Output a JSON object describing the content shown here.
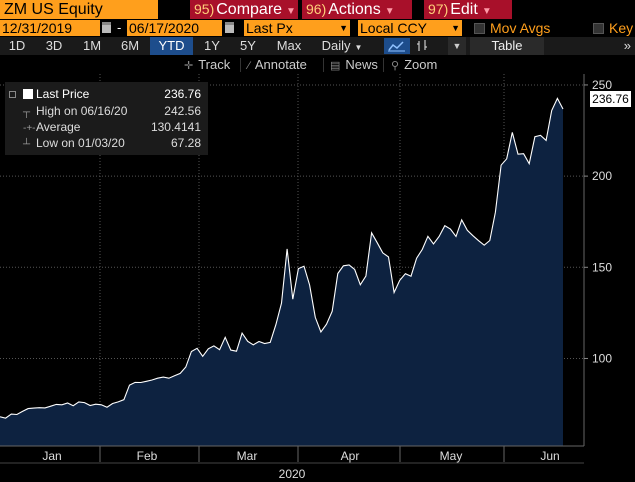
{
  "header": {
    "ticker": "ZM US Equity",
    "compare": {
      "num": "95)",
      "label": "Compare"
    },
    "actions": {
      "num": "96)",
      "label": "Actions"
    },
    "edit": {
      "num": "97)",
      "label": "Edit"
    }
  },
  "range": {
    "start_date": "12/31/2019",
    "separator": "-",
    "end_date": "06/17/2020",
    "field": "Last Px",
    "currency": "Local CCY",
    "mov_avgs_label": "Mov Avgs",
    "key_label": "Key"
  },
  "periods": [
    "1D",
    "3D",
    "1M",
    "6M",
    "YTD",
    "1Y",
    "5Y",
    "Max"
  ],
  "active_period": "YTD",
  "frequency": "Daily",
  "table_label": "Table",
  "more_label": "»",
  "tools": {
    "track": "Track",
    "annotate": "Annotate",
    "news": "News",
    "zoom": "Zoom"
  },
  "legend": {
    "last_price": {
      "label": "Last Price",
      "value": "236.76"
    },
    "high": {
      "label": "High on 06/16/20",
      "value": "242.56"
    },
    "average": {
      "label": "Average",
      "value": "130.4141"
    },
    "low": {
      "label": "Low on 01/03/20",
      "value": "67.28"
    }
  },
  "last_price_tag": "236.76",
  "colors": {
    "accent_orange": "#ff9f1c",
    "function_red": "#a8102a",
    "active_tab_blue": "#1d4d8c",
    "area_fill": "#0d2240",
    "line": "#ffffff"
  },
  "chart_data": {
    "type": "area",
    "title": "",
    "xlabel": "2020",
    "ylabel": "",
    "month_labels": [
      "Jan",
      "Feb",
      "Mar",
      "Apr",
      "May",
      "Jun"
    ],
    "y_ticks": [
      100,
      150,
      200,
      250
    ],
    "ylim": [
      52,
      256
    ],
    "grid": true,
    "series": [
      {
        "values": [
          68.0,
          67.3,
          69.5,
          69.3,
          71.0,
          72.5,
          72.8,
          73.0,
          72.9,
          73.8,
          74.8,
          74.6,
          75.6,
          74.1,
          76.2,
          75.8,
          74.2,
          74.9,
          74.6,
          73.3,
          75.3,
          76.2,
          77.4,
          85.4,
          86.9,
          86.8,
          87.5,
          88.2,
          89.2,
          89.8,
          89.2,
          90.5,
          91.8,
          95.3,
          103.8,
          105.6,
          101.2,
          105.3,
          106.9,
          104.8,
          111.6,
          104.6,
          104.0,
          113.9,
          109.4,
          107.5,
          109.3,
          108.2,
          108.8,
          118.6,
          130.3,
          160.1,
          132.5,
          149.3,
          150.6,
          140.3,
          122.5,
          114.5,
          118.8,
          125.9,
          146.6,
          150.8,
          151.3,
          148.8,
          140.4,
          145.2,
          168.9,
          163.5,
          157.9,
          155.7,
          136.2,
          142.8,
          146.5,
          145.1,
          155.0,
          159.8,
          167.0,
          162.8,
          166.9,
          172.8,
          171.0,
          166.9,
          176.0,
          170.3,
          167.3,
          164.6,
          162.1,
          164.7,
          180.2,
          206.0,
          209.5,
          224.0,
          212.0,
          212.3,
          206.8,
          221.6,
          222.4,
          219.6,
          236.0,
          242.6,
          236.8
        ]
      }
    ]
  }
}
